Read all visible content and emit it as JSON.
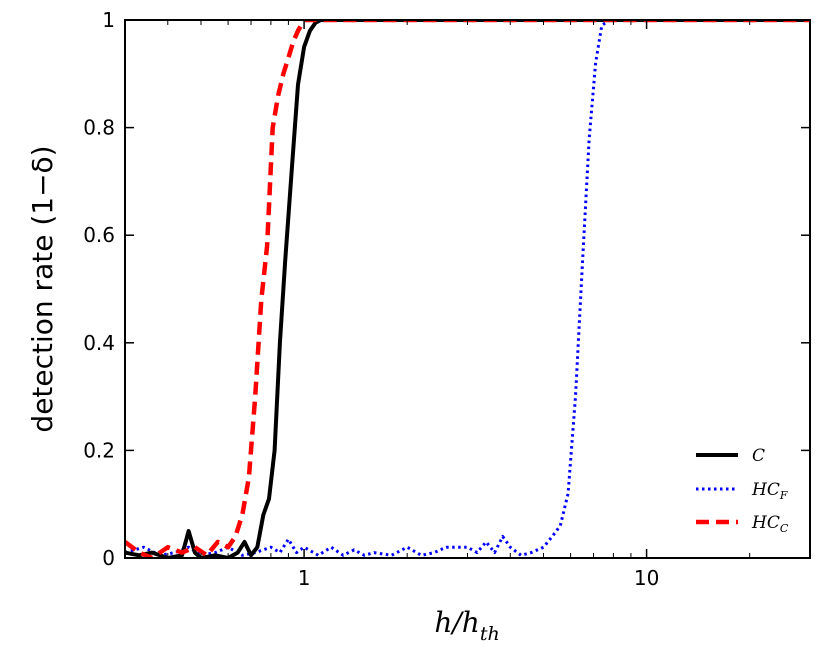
{
  "chart_data": {
    "type": "line",
    "title": "",
    "xlabel": "h/h_th",
    "xlabel_main": "h/h",
    "xlabel_sub": "th",
    "ylabel": "detection rate (1−δ)",
    "xscale": "log",
    "xlim": [
      0.3,
      30
    ],
    "ylim": [
      0,
      1
    ],
    "xticks": [
      1,
      10
    ],
    "xtick_labels": [
      "1",
      "10"
    ],
    "yticks": [
      0,
      0.2,
      0.4,
      0.6,
      0.8,
      1
    ],
    "ytick_labels": [
      "0",
      "0.2",
      "0.4",
      "0.6",
      "0.8",
      "1"
    ],
    "legend_position": "lower-right",
    "series": [
      {
        "name": "C",
        "legend_main": "C",
        "legend_sub": "",
        "color": "#000000",
        "style": "solid",
        "x": [
          0.3,
          0.33,
          0.36,
          0.4,
          0.44,
          0.46,
          0.48,
          0.5,
          0.55,
          0.6,
          0.64,
          0.67,
          0.7,
          0.73,
          0.76,
          0.79,
          0.82,
          0.85,
          0.88,
          0.92,
          0.96,
          1.0,
          1.04,
          1.08,
          1.12,
          2,
          5,
          10,
          30
        ],
        "y": [
          0.01,
          0.005,
          0.01,
          0.0,
          0.005,
          0.05,
          0.01,
          0.0,
          0.005,
          0.0,
          0.01,
          0.03,
          0.005,
          0.02,
          0.08,
          0.11,
          0.2,
          0.4,
          0.55,
          0.72,
          0.88,
          0.95,
          0.98,
          0.995,
          1,
          1,
          1,
          1,
          1
        ]
      },
      {
        "name": "HC_F",
        "legend_main": "HC",
        "legend_sub": "F",
        "color": "#0000ff",
        "style": "dotted",
        "x": [
          0.3,
          0.34,
          0.38,
          0.42,
          0.46,
          0.5,
          0.55,
          0.6,
          0.66,
          0.72,
          0.8,
          0.85,
          0.9,
          0.95,
          1.0,
          1.1,
          1.2,
          1.3,
          1.4,
          1.5,
          1.6,
          1.8,
          2.0,
          2.2,
          2.4,
          2.6,
          2.8,
          3.0,
          3.2,
          3.4,
          3.6,
          3.8,
          4.0,
          4.3,
          4.6,
          5.0,
          5.3,
          5.6,
          5.9,
          6.2,
          6.5,
          6.8,
          7.1,
          7.4,
          7.8,
          10,
          30
        ],
        "y": [
          0.01,
          0.02,
          0.005,
          0.01,
          0.02,
          0.005,
          0.01,
          0.02,
          0.005,
          0.01,
          0.02,
          0.01,
          0.035,
          0.01,
          0.02,
          0.005,
          0.02,
          0.005,
          0.015,
          0.005,
          0.01,
          0.005,
          0.02,
          0.005,
          0.01,
          0.02,
          0.02,
          0.02,
          0.01,
          0.03,
          0.01,
          0.04,
          0.02,
          0.005,
          0.01,
          0.02,
          0.04,
          0.06,
          0.12,
          0.3,
          0.55,
          0.78,
          0.92,
          0.99,
          1,
          1,
          1
        ]
      },
      {
        "name": "HC_C",
        "legend_main": "HC",
        "legend_sub": "C",
        "color": "#ff0000",
        "style": "dashed",
        "x": [
          0.3,
          0.33,
          0.36,
          0.4,
          0.44,
          0.48,
          0.52,
          0.56,
          0.6,
          0.63,
          0.66,
          0.69,
          0.72,
          0.75,
          0.78,
          0.81,
          0.84,
          0.87,
          0.9,
          0.93,
          0.96,
          0.98,
          1.0,
          2,
          5,
          10,
          30
        ],
        "y": [
          0.03,
          0.01,
          0.0,
          0.02,
          0.01,
          0.02,
          0.005,
          0.03,
          0.02,
          0.04,
          0.08,
          0.15,
          0.3,
          0.48,
          0.58,
          0.8,
          0.86,
          0.9,
          0.93,
          0.96,
          0.98,
          0.99,
          1,
          1,
          1,
          1,
          1
        ]
      }
    ]
  }
}
